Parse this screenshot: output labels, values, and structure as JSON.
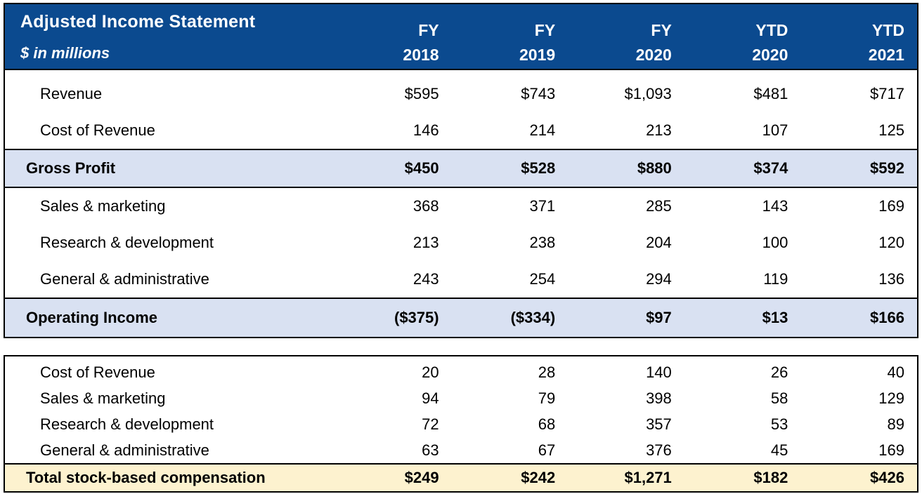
{
  "header": {
    "title": "Adjusted Income Statement",
    "subtitle": "$ in millions",
    "columns": [
      {
        "period": "FY",
        "year": "2018"
      },
      {
        "period": "FY",
        "year": "2019"
      },
      {
        "period": "FY",
        "year": "2020"
      },
      {
        "period": "YTD",
        "year": "2020"
      },
      {
        "period": "YTD",
        "year": "2021"
      }
    ]
  },
  "income_table": {
    "rows": [
      {
        "label": "Revenue",
        "style": "regular",
        "values": [
          "$595",
          "$743",
          "$1,093",
          "$481",
          "$717"
        ]
      },
      {
        "label": "Cost of Revenue",
        "style": "regular",
        "values": [
          "146",
          "214",
          "213",
          "107",
          "125"
        ]
      },
      {
        "label": "Gross Profit",
        "style": "subtotal",
        "values": [
          "$450",
          "$528",
          "$880",
          "$374",
          "$592"
        ]
      },
      {
        "label": "Sales & marketing",
        "style": "regular",
        "values": [
          "368",
          "371",
          "285",
          "143",
          "169"
        ]
      },
      {
        "label": "Research & development",
        "style": "regular",
        "values": [
          "213",
          "238",
          "204",
          "100",
          "120"
        ]
      },
      {
        "label": "General & administrative",
        "style": "regular",
        "values": [
          "243",
          "254",
          "294",
          "119",
          "136"
        ]
      },
      {
        "label": "Operating Income",
        "style": "subtotal",
        "values": [
          "($375)",
          "($334)",
          "$97",
          "$13",
          "$166"
        ]
      }
    ]
  },
  "sbc_table": {
    "rows": [
      {
        "label": "Cost of Revenue",
        "style": "regular",
        "values": [
          "20",
          "28",
          "140",
          "26",
          "40"
        ]
      },
      {
        "label": "Sales & marketing",
        "style": "regular",
        "values": [
          "94",
          "79",
          "398",
          "58",
          "129"
        ]
      },
      {
        "label": "Research & development",
        "style": "regular",
        "values": [
          "72",
          "68",
          "357",
          "53",
          "89"
        ]
      },
      {
        "label": "General & administrative",
        "style": "regular",
        "values": [
          "63",
          "67",
          "376",
          "45",
          "169"
        ]
      },
      {
        "label": "Total stock-based compensation",
        "style": "total",
        "values": [
          "$249",
          "$242",
          "$1,271",
          "$182",
          "$426"
        ]
      }
    ]
  },
  "colors": {
    "header_bg": "#0B4A8F",
    "header_text": "#FFFFFF",
    "subtotal_bg": "#D9E1F2",
    "total_bg": "#FDF2CF",
    "border": "#000000",
    "body_text": "#000000"
  }
}
